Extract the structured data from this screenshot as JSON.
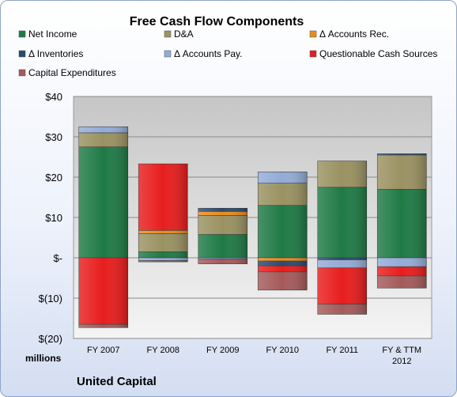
{
  "chart_data": {
    "type": "bar",
    "stacked": true,
    "title": "Free Cash Flow Components",
    "ylabel_units": "millions",
    "brand": "United Capital",
    "yticks": [
      "$40",
      "$30",
      "$20",
      "$10",
      "$-",
      "$(10)",
      "$(20)"
    ],
    "ylim": [
      -20,
      40
    ],
    "grid": true,
    "legend_position": "top",
    "categories": [
      "FY 2007",
      "FY 2008",
      "FY 2009",
      "FY 2010",
      "FY 2011",
      "FY & TTM 2012"
    ],
    "series": [
      {
        "name": "Net Income",
        "color": "#1f7a45",
        "values": [
          27.5,
          1.5,
          5.8,
          13,
          17.5,
          17
        ]
      },
      {
        "name": "D&A",
        "color": "#9a9262",
        "values": [
          3.5,
          4.5,
          4.7,
          5.5,
          6.5,
          8.5
        ]
      },
      {
        "name": "Δ Accounts Rec.",
        "color": "#e98b1e",
        "values": [
          0,
          0.8,
          1,
          -0.8,
          0,
          0
        ]
      },
      {
        "name": "Δ Inventories",
        "color": "#2b4a70",
        "values": [
          0,
          0,
          0.8,
          -1.2,
          -0.5,
          0.3
        ]
      },
      {
        "name": "Δ Accounts Pay.",
        "color": "#93acd6",
        "values": [
          1.5,
          -0.7,
          -0.3,
          2.8,
          -2,
          -2.2
        ]
      },
      {
        "name": "Questionable Cash Sources",
        "color": "#e81d1d",
        "values": [
          -16.5,
          16.5,
          0,
          -1.5,
          -9,
          -2.3
        ]
      },
      {
        "name": "Capital Expenditures",
        "color": "#a55a5a",
        "values": [
          -0.8,
          -0.3,
          -1.2,
          -4.5,
          -2.5,
          -3
        ]
      }
    ]
  }
}
